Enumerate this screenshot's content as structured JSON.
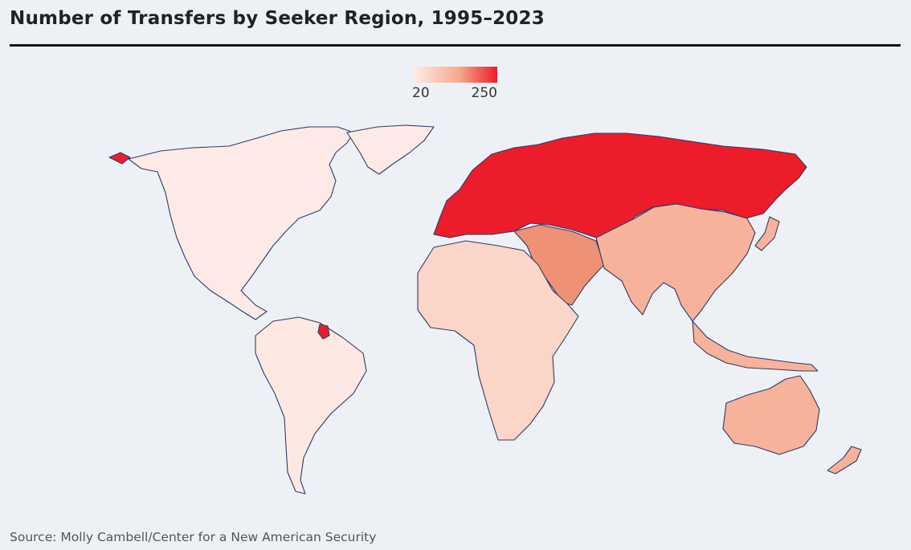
{
  "header": {
    "title": "Number of Transfers by Seeker Region, 1995–2023"
  },
  "legend": {
    "min_label": "20",
    "max_label": "250",
    "color_low": "#fdeee9",
    "color_high": "#ec1c2a"
  },
  "map": {
    "background": "#edf1f5",
    "border_color": "#2f3b66",
    "regions": [
      {
        "id": "north-america",
        "color": "#fdeae6",
        "value": 20
      },
      {
        "id": "greenland",
        "color": "#fdeae6",
        "value": 20
      },
      {
        "id": "south-america",
        "color": "#fde8e3",
        "value": 22
      },
      {
        "id": "french-guiana",
        "color": "#ec1c2a",
        "value": 250
      },
      {
        "id": "alaska-tip",
        "color": "#ec1c2a",
        "value": 250
      },
      {
        "id": "europe-russia",
        "color": "#ec1c2a",
        "value": 250
      },
      {
        "id": "middle-east",
        "color": "#ef9175",
        "value": 140
      },
      {
        "id": "africa",
        "color": "#fbd5c7",
        "value": 60
      },
      {
        "id": "asia",
        "color": "#f7b29b",
        "value": 100
      },
      {
        "id": "oceania",
        "color": "#f7b29b",
        "value": 100
      }
    ]
  },
  "footer": {
    "source": "Source: Molly Cambell/Center for a New American Security"
  }
}
